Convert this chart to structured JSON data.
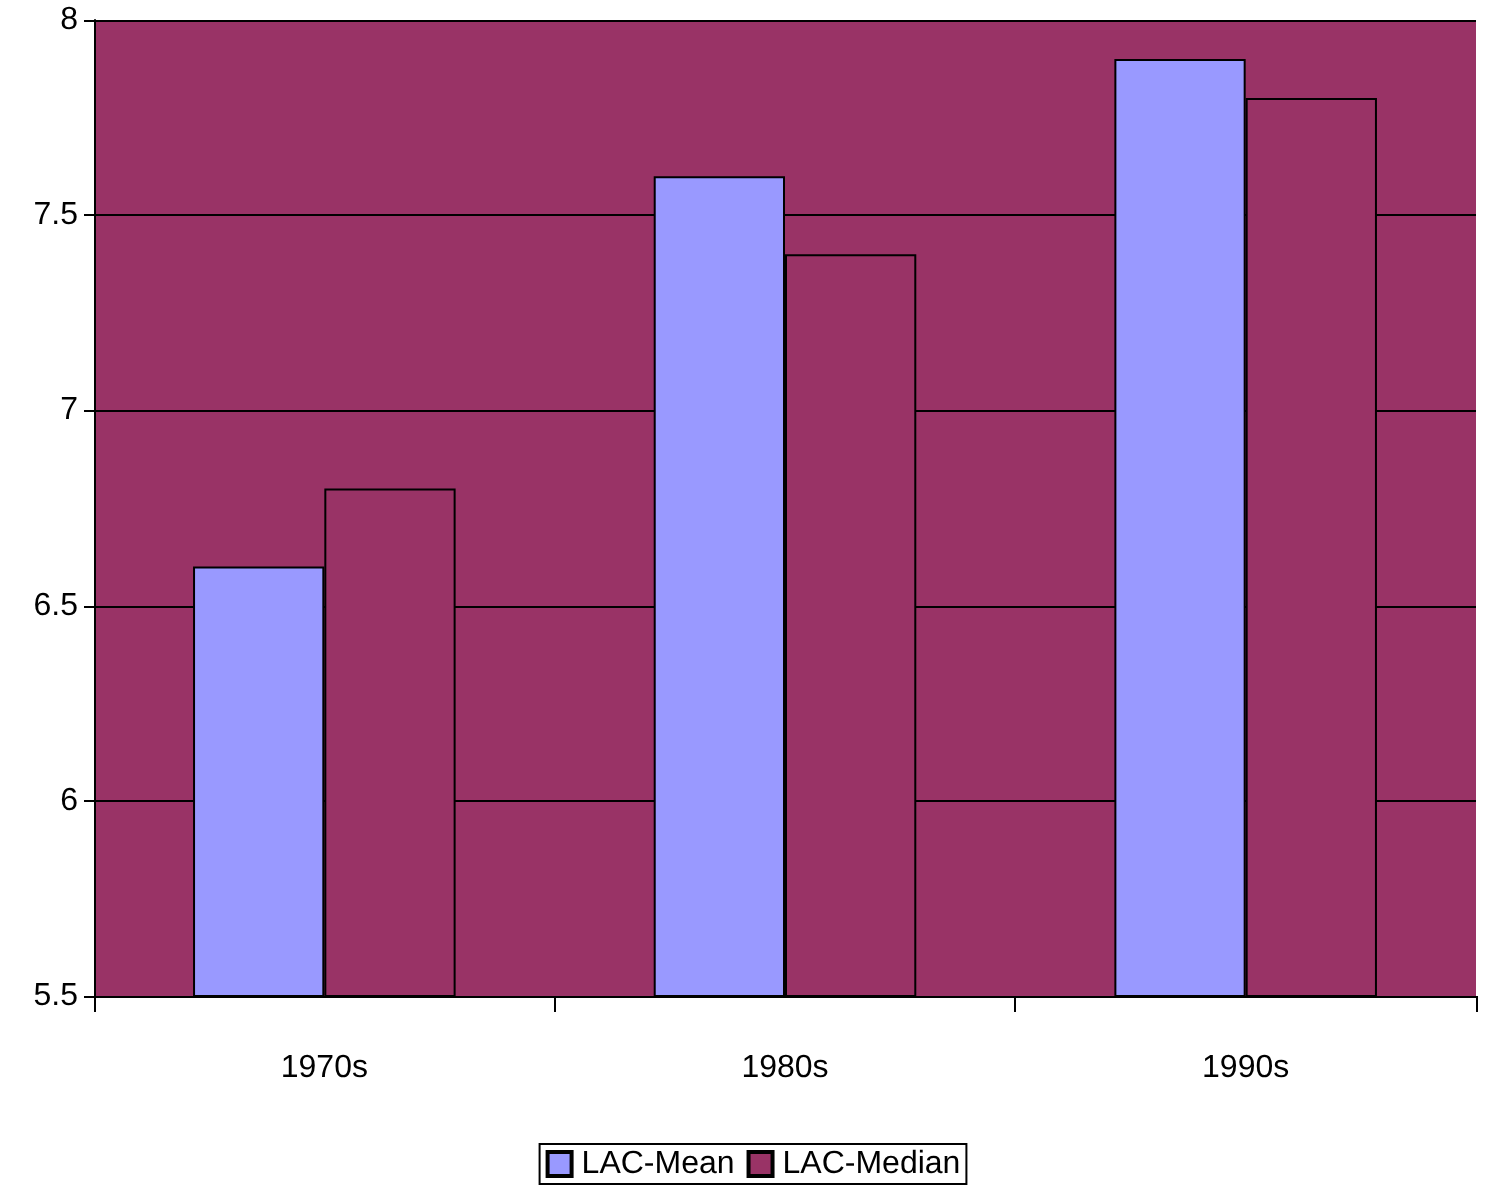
{
  "chart_data": {
    "type": "bar",
    "categories": [
      "1970s",
      "1980s",
      "1990s"
    ],
    "series": [
      {
        "name": "LAC-Mean",
        "color": "#9999ff",
        "values": [
          6.6,
          7.6,
          7.9
        ]
      },
      {
        "name": "LAC-Median",
        "color": "#993366",
        "values": [
          6.8,
          7.4,
          7.8
        ]
      }
    ],
    "ylim": [
      5.5,
      8
    ],
    "yticks": [
      5.5,
      6,
      6.5,
      7,
      7.5,
      8
    ],
    "grid": "y",
    "legend": "bottom"
  }
}
